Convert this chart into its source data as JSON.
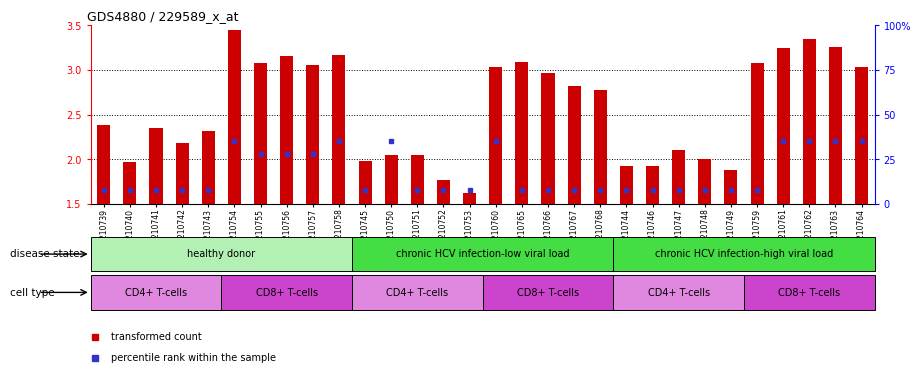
{
  "title": "GDS4880 / 229589_x_at",
  "samples": [
    "GSM1210739",
    "GSM1210740",
    "GSM1210741",
    "GSM1210742",
    "GSM1210743",
    "GSM1210754",
    "GSM1210755",
    "GSM1210756",
    "GSM1210757",
    "GSM1210758",
    "GSM1210745",
    "GSM1210750",
    "GSM1210751",
    "GSM1210752",
    "GSM1210753",
    "GSM1210760",
    "GSM1210765",
    "GSM1210766",
    "GSM1210767",
    "GSM1210768",
    "GSM1210744",
    "GSM1210746",
    "GSM1210747",
    "GSM1210748",
    "GSM1210749",
    "GSM1210759",
    "GSM1210761",
    "GSM1210762",
    "GSM1210763",
    "GSM1210764"
  ],
  "transformed_count": [
    2.38,
    1.97,
    2.35,
    2.18,
    2.32,
    3.45,
    3.08,
    3.16,
    3.05,
    3.17,
    1.98,
    2.05,
    2.05,
    1.77,
    1.62,
    3.03,
    3.09,
    2.96,
    2.82,
    2.77,
    1.93,
    1.92,
    2.1,
    2.0,
    1.88,
    3.08,
    3.25,
    3.35,
    3.26,
    3.03
  ],
  "percentile_rank": [
    8,
    8,
    8,
    8,
    8,
    35,
    28,
    28,
    28,
    35,
    8,
    35,
    8,
    8,
    8,
    35,
    8,
    8,
    8,
    8,
    8,
    8,
    8,
    8,
    8,
    8,
    35,
    35,
    35,
    35
  ],
  "ymin": 1.5,
  "ymax": 3.5,
  "y_ticks": [
    1.5,
    2.0,
    2.5,
    3.0,
    3.5
  ],
  "y2_ticks": [
    0,
    25,
    50,
    75,
    100
  ],
  "bar_color": "#cc0000",
  "percentile_color": "#3333cc",
  "background_color": "#ffffff",
  "plot_bg_color": "#ffffff",
  "disease_states": [
    {
      "label": "healthy donor",
      "start": 0,
      "end": 9,
      "color": "#b3f0b3"
    },
    {
      "label": "chronic HCV infection-low viral load",
      "start": 10,
      "end": 19,
      "color": "#44dd44"
    },
    {
      "label": "chronic HCV infection-high viral load",
      "start": 20,
      "end": 29,
      "color": "#44dd44"
    }
  ],
  "cell_types": [
    {
      "label": "CD4+ T-cells",
      "start": 0,
      "end": 4,
      "color": "#e088e0"
    },
    {
      "label": "CD8+ T-cells",
      "start": 5,
      "end": 9,
      "color": "#cc44cc"
    },
    {
      "label": "CD4+ T-cells",
      "start": 10,
      "end": 14,
      "color": "#e088e0"
    },
    {
      "label": "CD8+ T-cells",
      "start": 15,
      "end": 19,
      "color": "#cc44cc"
    },
    {
      "label": "CD4+ T-cells",
      "start": 20,
      "end": 24,
      "color": "#e088e0"
    },
    {
      "label": "CD8+ T-cells",
      "start": 25,
      "end": 29,
      "color": "#cc44cc"
    }
  ],
  "disease_label": "disease state",
  "cell_label": "cell type",
  "legend_items": [
    {
      "label": "transformed count",
      "color": "#cc0000"
    },
    {
      "label": "percentile rank within the sample",
      "color": "#3333cc"
    }
  ],
  "bar_width": 0.5
}
